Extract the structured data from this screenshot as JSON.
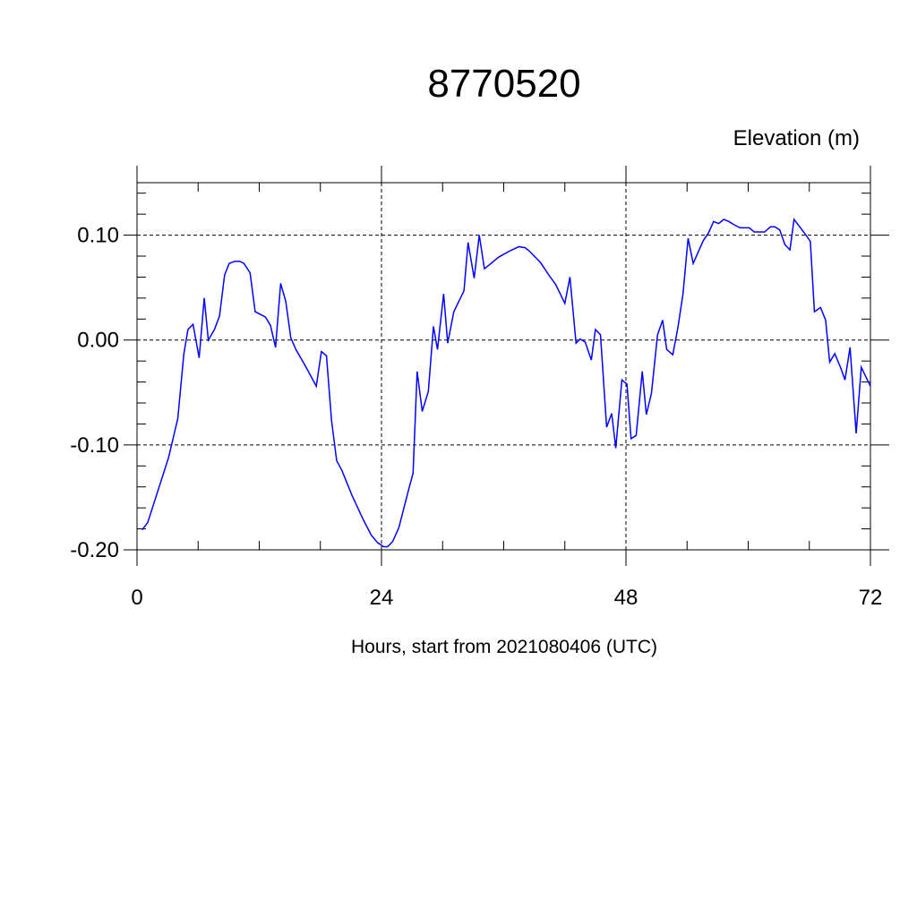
{
  "chart_data": {
    "type": "line",
    "title": "8770520",
    "subtitle": "Elevation (m)",
    "xlabel": "Hours, start from 2021080406 (UTC)",
    "xlim": [
      0,
      72
    ],
    "xticks": [
      0,
      24,
      48,
      72
    ],
    "xminorticks": [
      6,
      12,
      18,
      30,
      36,
      42,
      54,
      60,
      66
    ],
    "ylim": [
      -0.2,
      0.15
    ],
    "yticks": [
      {
        "value": 0.1,
        "label": "0.10"
      },
      {
        "value": 0,
        "label": "0.00"
      },
      {
        "value": -0.1,
        "label": "-0.10"
      },
      {
        "value": -0.2,
        "label": "-0.20"
      }
    ],
    "yminorticks": [
      -0.18,
      -0.16,
      -0.14,
      -0.12,
      -0.08,
      -0.06,
      -0.04,
      -0.02,
      0.02,
      0.04,
      0.06,
      0.08,
      0.12,
      0.14
    ],
    "grid": true,
    "x": [
      0.5,
      1.05,
      3.1,
      4.0,
      4.6,
      5.0,
      5.5,
      6.1,
      6.6,
      7.0,
      7.6,
      8.1,
      8.6,
      9.05,
      9.6,
      10.1,
      10.5,
      11.1,
      11.6,
      12.6,
      13.1,
      13.6,
      14.1,
      14.6,
      15.1,
      15.6,
      16.6,
      17.1,
      17.6,
      18.1,
      18.6,
      19.1,
      19.6,
      20.1,
      21.1,
      22.2,
      23.0,
      23.6,
      24.2,
      24.6,
      25.1,
      25.7,
      26.6,
      27.1,
      27.5,
      28.0,
      28.6,
      29.1,
      29.5,
      30.1,
      30.5,
      31.1,
      32.1,
      32.5,
      33.1,
      33.6,
      34.1,
      34.5,
      35.5,
      36.6,
      37.5,
      38.1,
      38.5,
      39.0,
      39.6,
      40.5,
      41.1,
      41.6,
      42.0,
      42.5,
      43.1,
      43.5,
      44.0,
      44.6,
      45.0,
      45.5,
      46.1,
      46.6,
      47.0,
      47.6,
      48.1,
      48.5,
      49.0,
      49.6,
      50.0,
      50.5,
      51.1,
      51.6,
      52.0,
      52.6,
      53.1,
      53.6,
      54.1,
      54.6,
      55.6,
      56.1,
      56.6,
      57.1,
      57.6,
      58.1,
      58.6,
      59.2,
      60.1,
      60.6,
      61.6,
      62.2,
      62.6,
      63.1,
      63.6,
      64.1,
      64.5,
      65.6,
      66.1,
      66.5,
      67.1,
      67.6,
      68.0,
      68.5,
      69.1,
      69.5,
      70.0,
      70.6,
      71.1,
      72.0
    ],
    "series": [
      {
        "color": "#0000ff",
        "values": [
          -0.181,
          -0.174,
          -0.112,
          -0.075,
          -0.013,
          0.01,
          0.015,
          -0.017,
          0.04,
          0.0,
          0.01,
          0.023,
          0.062,
          0.073,
          0.075,
          0.075,
          0.073,
          0.064,
          0.027,
          0.022,
          0.014,
          -0.007,
          0.054,
          0.037,
          0.002,
          -0.009,
          -0.026,
          -0.035,
          -0.044,
          -0.011,
          -0.015,
          -0.077,
          -0.115,
          -0.124,
          -0.148,
          -0.171,
          -0.186,
          -0.193,
          -0.197,
          -0.197,
          -0.192,
          -0.179,
          -0.145,
          -0.127,
          -0.03,
          -0.068,
          -0.049,
          0.013,
          -0.009,
          0.044,
          -0.003,
          0.027,
          0.047,
          0.093,
          0.059,
          0.1,
          0.068,
          0.071,
          0.079,
          0.085,
          0.089,
          0.088,
          0.085,
          0.08,
          0.074,
          0.061,
          0.053,
          0.043,
          0.035,
          0.06,
          -0.003,
          0.001,
          -0.002,
          -0.019,
          0.01,
          0.005,
          -0.083,
          -0.07,
          -0.103,
          -0.038,
          -0.042,
          -0.094,
          -0.091,
          -0.03,
          -0.071,
          -0.051,
          0.005,
          0.019,
          -0.009,
          -0.014,
          0.012,
          0.044,
          0.097,
          0.073,
          0.095,
          0.102,
          0.113,
          0.111,
          0.115,
          0.113,
          0.11,
          0.107,
          0.107,
          0.103,
          0.103,
          0.108,
          0.108,
          0.105,
          0.091,
          0.086,
          0.115,
          0.101,
          0.094,
          0.027,
          0.031,
          0.019,
          -0.021,
          -0.013,
          -0.027,
          -0.038,
          -0.007,
          -0.089,
          -0.026,
          -0.044
        ]
      }
    ]
  }
}
